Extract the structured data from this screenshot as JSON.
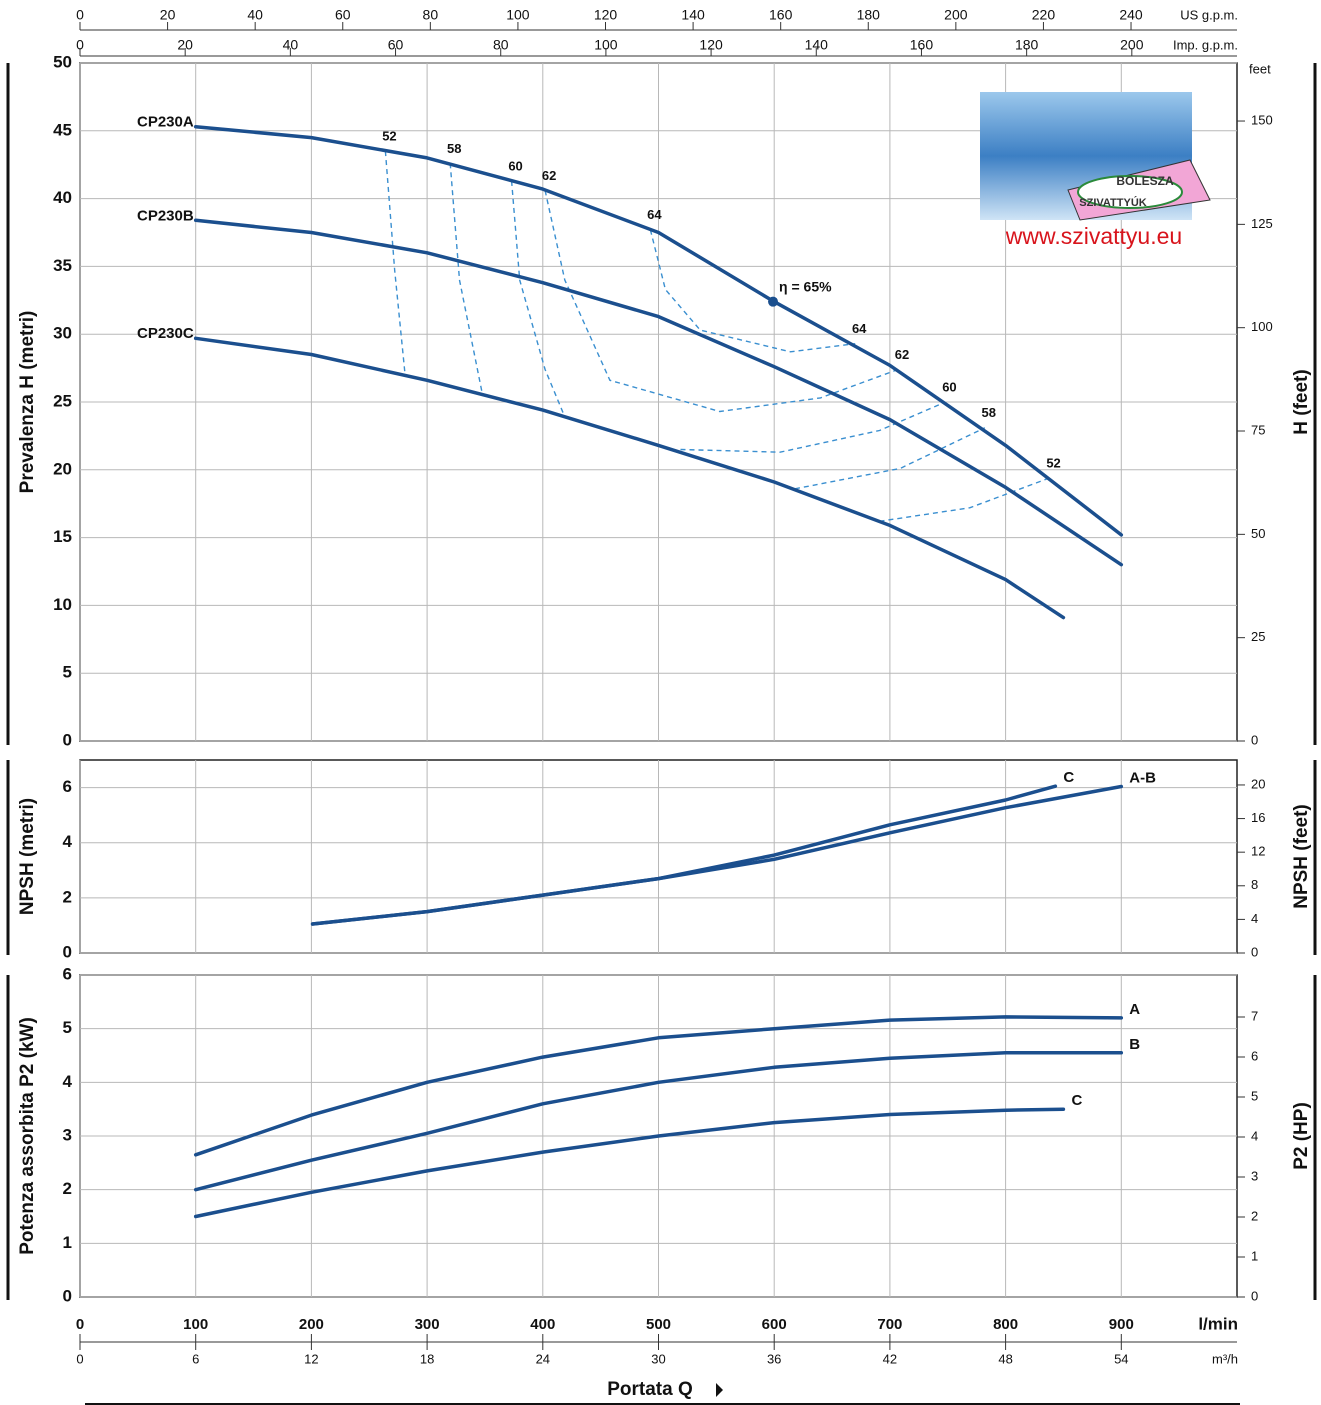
{
  "chart_data": [
    {
      "type": "line",
      "y_label": "Prevalenza H (metri)",
      "y2_label": "H (feet)",
      "y2_unit": "feet",
      "ylim": [
        0,
        50
      ],
      "yticks": [
        0,
        5,
        10,
        15,
        20,
        25,
        30,
        35,
        40,
        45,
        50
      ],
      "y2lim": [
        0,
        164.04
      ],
      "y2ticks": [
        0,
        25,
        50,
        75,
        100,
        125,
        150
      ],
      "series_label_at": "start",
      "grid": true,
      "series": [
        {
          "name": "CP230A",
          "color": "#1b4f8e",
          "x": [
            100,
            200,
            300,
            400,
            500,
            600,
            700,
            800,
            900
          ],
          "values": [
            45.3,
            44.5,
            43.0,
            40.7,
            37.5,
            32.4,
            27.7,
            21.8,
            15.2
          ]
        },
        {
          "name": "CP230B",
          "color": "#1b4f8e",
          "x": [
            100,
            200,
            300,
            400,
            500,
            600,
            700,
            800,
            900
          ],
          "values": [
            38.4,
            37.5,
            36.0,
            33.8,
            31.3,
            27.6,
            23.7,
            18.7,
            13.0
          ]
        },
        {
          "name": "CP230C",
          "color": "#1b4f8e",
          "x": [
            100,
            200,
            300,
            400,
            500,
            600,
            700,
            800,
            850
          ],
          "values": [
            29.7,
            28.5,
            26.6,
            24.4,
            21.8,
            19.1,
            15.9,
            11.9,
            9.1
          ]
        }
      ],
      "efficiency_color": "#3a8fd0",
      "efficiency": [
        {
          "label": "52",
          "x": [
            264,
            272,
            281,
            null,
            691,
            769,
            838
          ],
          "values": [
            43.5,
            34.7,
            27.0,
            null,
            16.2,
            17.2,
            19.4
          ]
        },
        {
          "label": "58",
          "x": [
            320,
            328,
            348,
            null,
            618,
            709,
            782
          ],
          "values": [
            42.6,
            34.0,
            25.5,
            null,
            18.6,
            20.1,
            23.1
          ]
        },
        {
          "label": "60",
          "x": [
            373,
            380,
            402,
            419,
            null,
            519,
            605,
            691,
            748
          ],
          "values": [
            41.3,
            34.0,
            27.4,
            23.9,
            null,
            21.5,
            21.3,
            22.9,
            25.0
          ]
        },
        {
          "label": "62",
          "x": [
            402,
            419,
            458,
            553,
            640,
            707
          ],
          "values": [
            40.6,
            34.0,
            26.6,
            24.3,
            25.3,
            27.4
          ]
        },
        {
          "label": "64",
          "x": [
            493,
            506,
            536,
            614,
            670
          ],
          "values": [
            37.7,
            33.3,
            30.3,
            28.7,
            29.3
          ]
        }
      ],
      "bep": {
        "label": "η = 65%",
        "x": 599,
        "y": 32.4
      }
    },
    {
      "type": "line",
      "y_label": "NPSH (metri)",
      "y2_label": "NPSH (feet)",
      "ylim": [
        0,
        7
      ],
      "yticks": [
        0,
        2,
        4,
        6
      ],
      "y2lim": [
        0,
        22.97
      ],
      "y2ticks": [
        0,
        4,
        8,
        12,
        16,
        20
      ],
      "series_label_at": "end",
      "grid": true,
      "series": [
        {
          "name": "C",
          "color": "#1b4f8e",
          "x": [
            201,
            300,
            400,
            500,
            600,
            700,
            800,
            843
          ],
          "values": [
            1.05,
            1.5,
            2.1,
            2.7,
            3.55,
            4.65,
            5.55,
            6.05
          ]
        },
        {
          "name": "A-B",
          "color": "#1b4f8e",
          "x": [
            201,
            300,
            400,
            500,
            600,
            700,
            800,
            900
          ],
          "values": [
            1.05,
            1.5,
            2.1,
            2.7,
            3.4,
            4.36,
            5.27,
            6.04
          ]
        }
      ]
    },
    {
      "type": "line",
      "y_label": "Potenza assorbita P2 (kW)",
      "y2_label": "P2 (HP)",
      "ylim": [
        0,
        6
      ],
      "yticks": [
        0,
        1,
        2,
        3,
        4,
        5,
        6
      ],
      "y2lim": [
        0,
        8.05
      ],
      "y2ticks": [
        0,
        1,
        2,
        3,
        4,
        5,
        6,
        7
      ],
      "series_label_at": "end",
      "grid": true,
      "series": [
        {
          "name": "A",
          "color": "#1b4f8e",
          "x": [
            100,
            200,
            300,
            400,
            500,
            600,
            700,
            800,
            900
          ],
          "values": [
            2.65,
            3.39,
            4.0,
            4.47,
            4.83,
            5.0,
            5.16,
            5.22,
            5.2
          ]
        },
        {
          "name": "B",
          "color": "#1b4f8e",
          "x": [
            100,
            200,
            300,
            400,
            500,
            600,
            700,
            800,
            900
          ],
          "values": [
            2.0,
            2.55,
            3.05,
            3.6,
            4.0,
            4.28,
            4.45,
            4.55,
            4.55
          ]
        },
        {
          "name": "C",
          "color": "#1b4f8e",
          "x": [
            100,
            200,
            300,
            400,
            500,
            600,
            700,
            800,
            850
          ],
          "values": [
            1.5,
            1.95,
            2.35,
            2.7,
            3.0,
            3.25,
            3.4,
            3.48,
            3.5
          ]
        }
      ]
    }
  ],
  "x_axes": [
    {
      "label": "US g.p.m.",
      "xlim": [
        0,
        264.2
      ],
      "xticks": [
        0,
        20,
        40,
        60,
        80,
        100,
        120,
        140,
        160,
        180,
        200,
        220,
        240
      ]
    },
    {
      "label": "Imp. g.p.m.",
      "xlim": [
        0,
        220
      ],
      "xticks": [
        0,
        20,
        40,
        60,
        80,
        100,
        120,
        140,
        160,
        180,
        200
      ]
    },
    {
      "label": "l/min",
      "xlim": [
        0,
        1000
      ],
      "xticks": [
        0,
        100,
        200,
        300,
        400,
        500,
        600,
        700,
        800,
        900
      ],
      "grid": true
    },
    {
      "label": "m³/h",
      "xlim": [
        0,
        60
      ],
      "xticks": [
        0,
        6,
        12,
        18,
        24,
        30,
        36,
        42,
        48,
        54
      ]
    }
  ],
  "x_label": "Portata Q",
  "logo": {
    "brand": "BOLESZA",
    "brand_sub": "SZIVATTYÚK",
    "url": "www.szivattyu.eu"
  }
}
